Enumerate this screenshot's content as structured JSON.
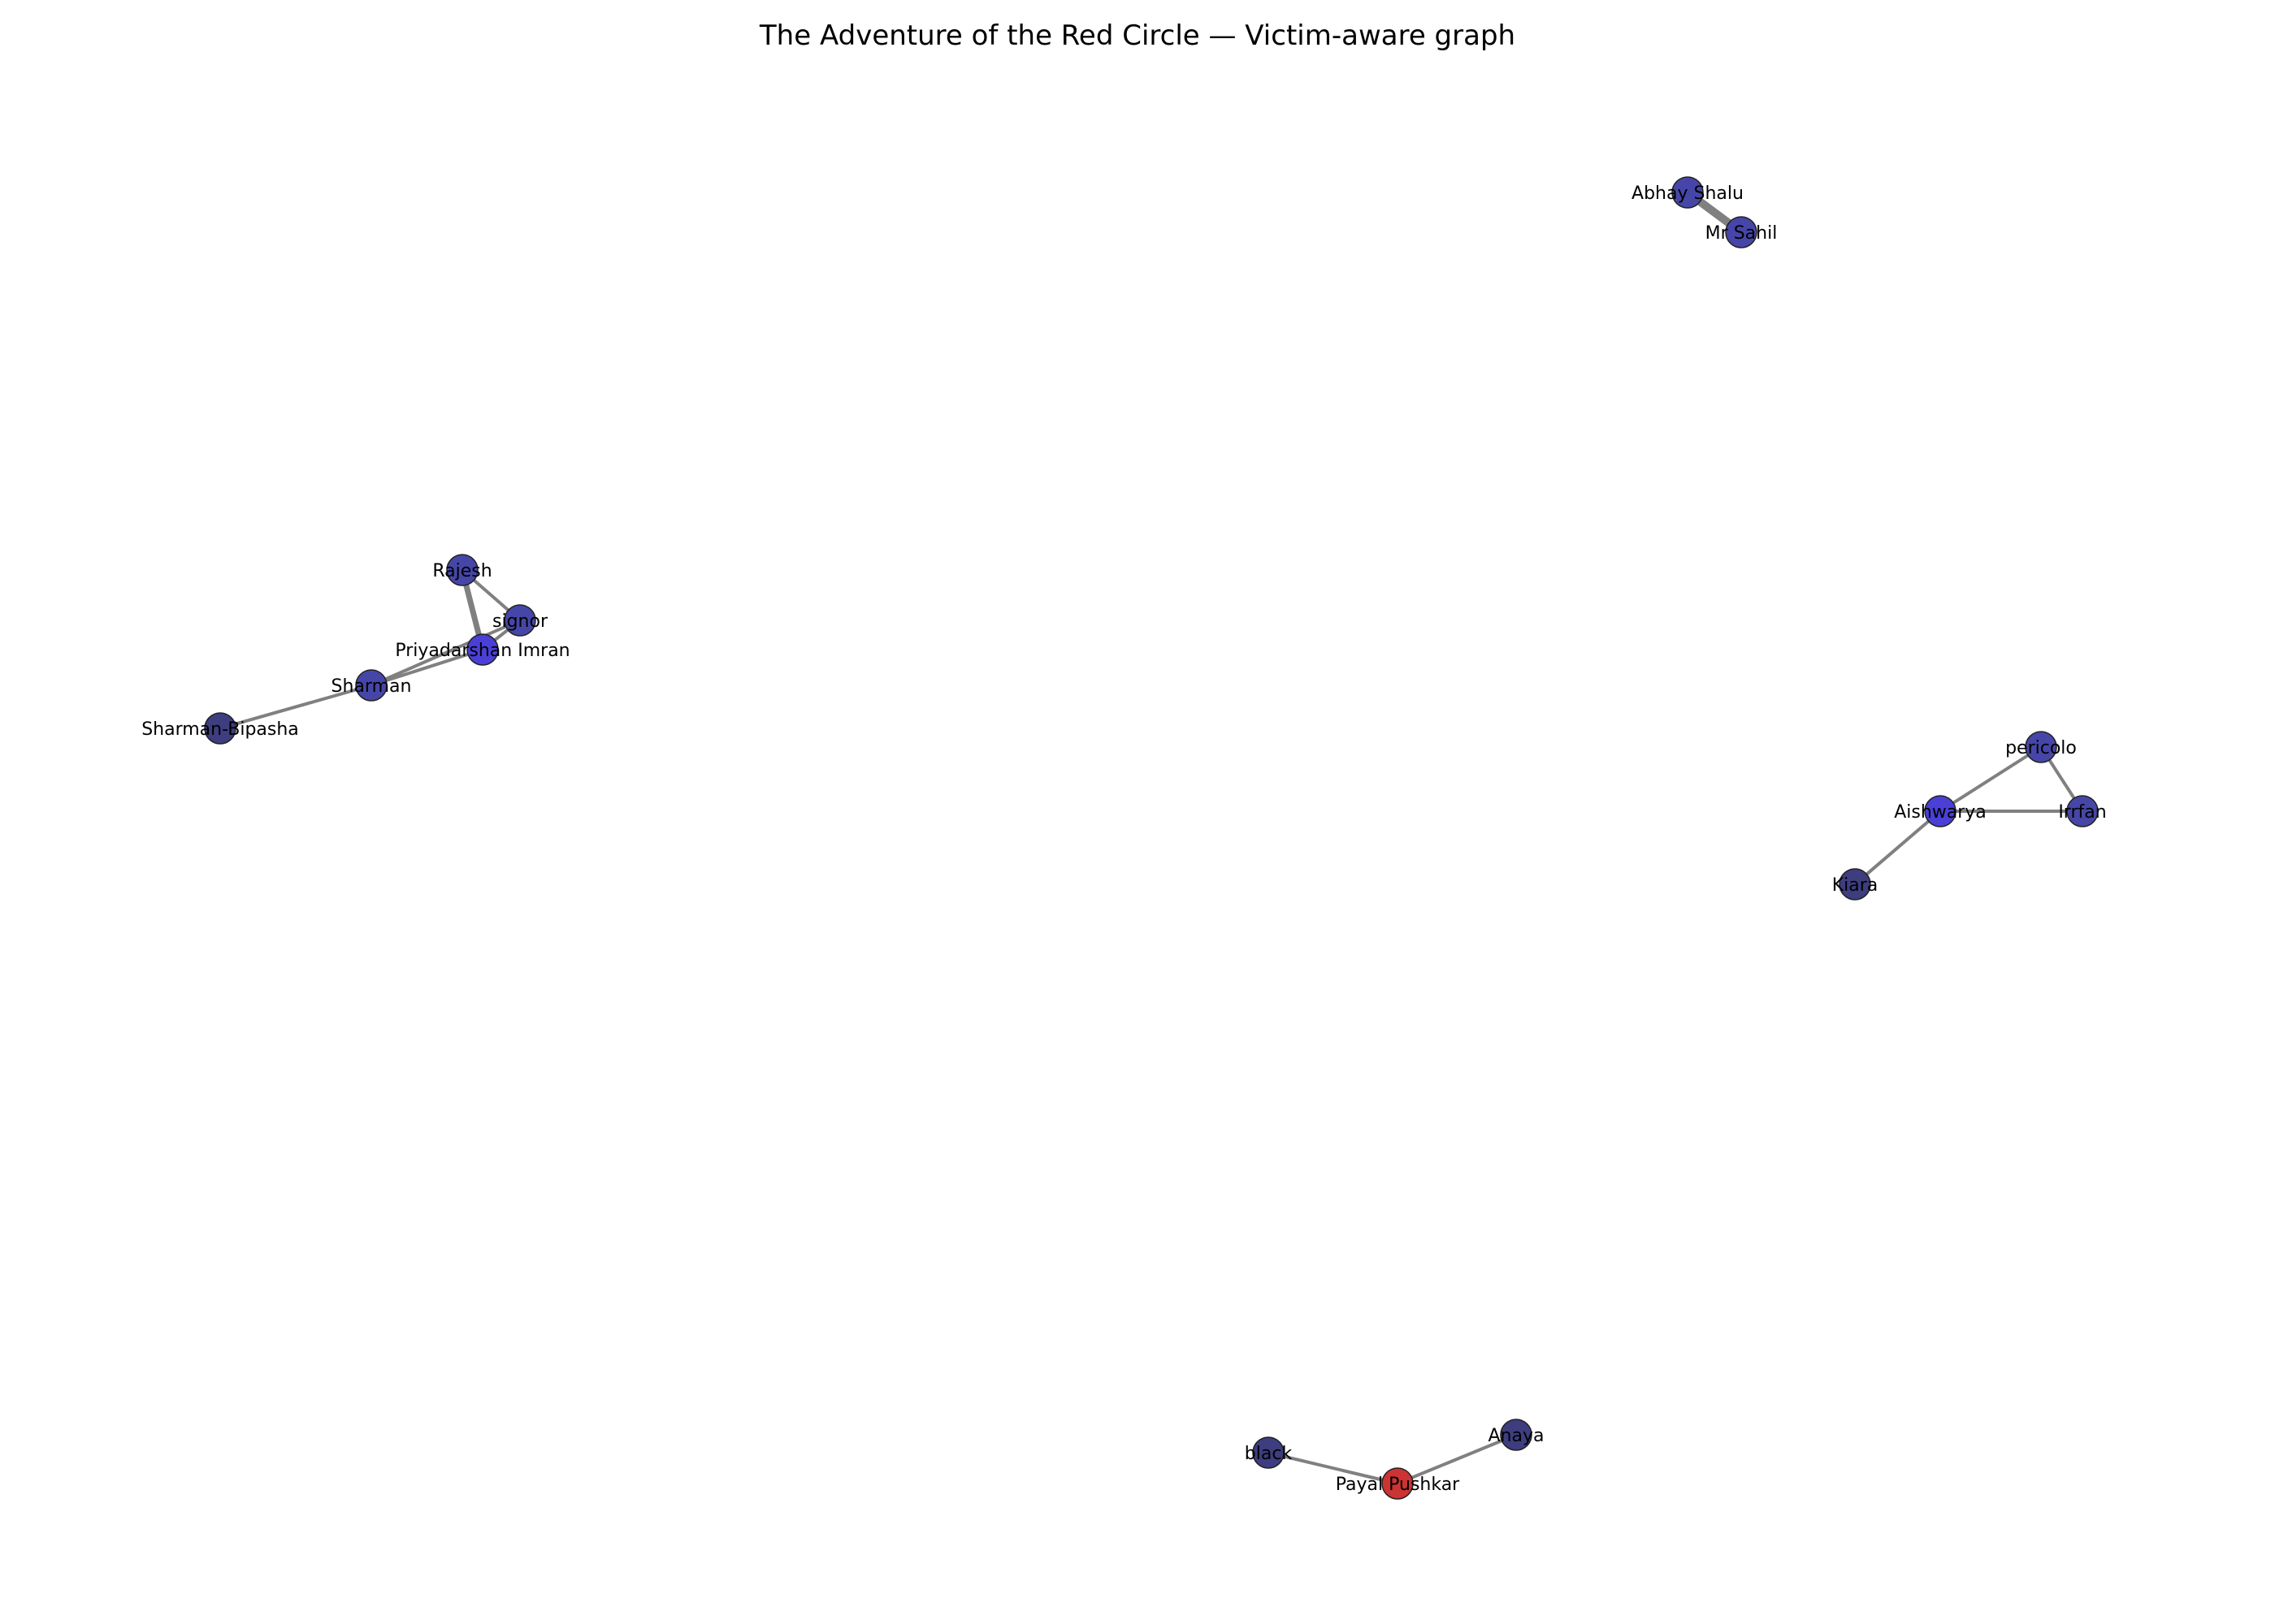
{
  "title": "The Adventure of the Red Circle — Victim-aware graph",
  "colors": {
    "edge": "#808080",
    "victim": "#cc3333",
    "node_dark": "#3d3d80",
    "node_mid": "#4646a8",
    "node_bright": "#4a3fd6"
  },
  "nodes": [
    {
      "id": "abhay_shalu",
      "label": "Abhay Shalu",
      "role": "node_mid"
    },
    {
      "id": "mr_sahil",
      "label": "Mr Sahil",
      "role": "node_mid"
    },
    {
      "id": "rajesh",
      "label": "Rajesh",
      "role": "node_mid"
    },
    {
      "id": "signor",
      "label": "signor",
      "role": "node_mid"
    },
    {
      "id": "priyadarshan_imran",
      "label": "Priyadarshan Imran",
      "role": "node_bright"
    },
    {
      "id": "sharman",
      "label": "Sharman",
      "role": "node_mid"
    },
    {
      "id": "sharman_bipasha",
      "label": "Sharman-Bipasha",
      "role": "node_dark"
    },
    {
      "id": "pericolo",
      "label": "pericolo",
      "role": "node_mid"
    },
    {
      "id": "aishwarya",
      "label": "Aishwarya",
      "role": "node_bright"
    },
    {
      "id": "irrfan",
      "label": "Irrfan",
      "role": "node_mid"
    },
    {
      "id": "kiara",
      "label": "Kiara",
      "role": "node_dark"
    },
    {
      "id": "black",
      "label": "black",
      "role": "node_dark"
    },
    {
      "id": "payal_pushkar",
      "label": "Payal Pushkar",
      "role": "victim"
    },
    {
      "id": "anaya",
      "label": "Anaya",
      "role": "node_dark"
    }
  ],
  "edges": [
    {
      "source": "abhay_shalu",
      "target": "mr_sahil",
      "weight": 3
    },
    {
      "source": "rajesh",
      "target": "signor",
      "weight": 1
    },
    {
      "source": "rajesh",
      "target": "priyadarshan_imran",
      "weight": 2
    },
    {
      "source": "signor",
      "target": "priyadarshan_imran",
      "weight": 1
    },
    {
      "source": "signor",
      "target": "sharman",
      "weight": 1
    },
    {
      "source": "priyadarshan_imran",
      "target": "sharman",
      "weight": 1
    },
    {
      "source": "sharman",
      "target": "sharman_bipasha",
      "weight": 1
    },
    {
      "source": "pericolo",
      "target": "aishwarya",
      "weight": 1
    },
    {
      "source": "pericolo",
      "target": "irrfan",
      "weight": 1
    },
    {
      "source": "aishwarya",
      "target": "irrfan",
      "weight": 1
    },
    {
      "source": "aishwarya",
      "target": "kiara",
      "weight": 1
    },
    {
      "source": "black",
      "target": "payal_pushkar",
      "weight": 1
    },
    {
      "source": "payal_pushkar",
      "target": "anaya",
      "weight": 1
    }
  ]
}
